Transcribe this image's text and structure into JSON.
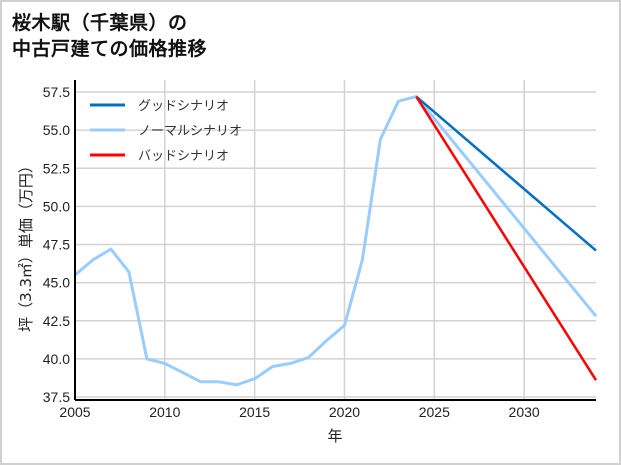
{
  "title": {
    "line1": "桜木駅（千葉県）の",
    "line2": "中古戸建ての価格推移"
  },
  "chart_data": {
    "type": "line",
    "title": "桜木駅（千葉県）の中古戸建ての価格推移",
    "xlabel": "年",
    "ylabel": "坪（3.3㎡）単価（万円）",
    "xlim": [
      2005,
      2034
    ],
    "ylim": [
      37.5,
      58.5
    ],
    "x_ticks": [
      2005,
      2010,
      2015,
      2020,
      2025,
      2030
    ],
    "y_ticks": [
      37.5,
      40.0,
      42.5,
      45.0,
      47.5,
      50.0,
      52.5,
      55.0,
      57.5
    ],
    "grid": true,
    "legend_position": "upper left",
    "series": [
      {
        "name": "グッドシナリオ",
        "color": "#0070c0",
        "x": [
          2024,
          2034
        ],
        "values": [
          57.2,
          47.1
        ]
      },
      {
        "name": "ノーマルシナリオ",
        "color": "#99ccff",
        "x": [
          2005,
          2006,
          2007,
          2008,
          2009,
          2010,
          2011,
          2012,
          2013,
          2014,
          2015,
          2016,
          2017,
          2018,
          2019,
          2020,
          2021,
          2022,
          2023,
          2024,
          2034
        ],
        "values": [
          45.5,
          46.5,
          47.2,
          45.7,
          40.0,
          39.7,
          39.1,
          38.5,
          38.5,
          38.3,
          38.7,
          39.5,
          39.7,
          40.1,
          41.2,
          42.2,
          46.5,
          54.4,
          56.9,
          57.2,
          42.8
        ]
      },
      {
        "name": "バッドシナリオ",
        "color": "#ff0000",
        "x": [
          2024,
          2034
        ],
        "values": [
          57.2,
          38.6
        ]
      }
    ]
  }
}
